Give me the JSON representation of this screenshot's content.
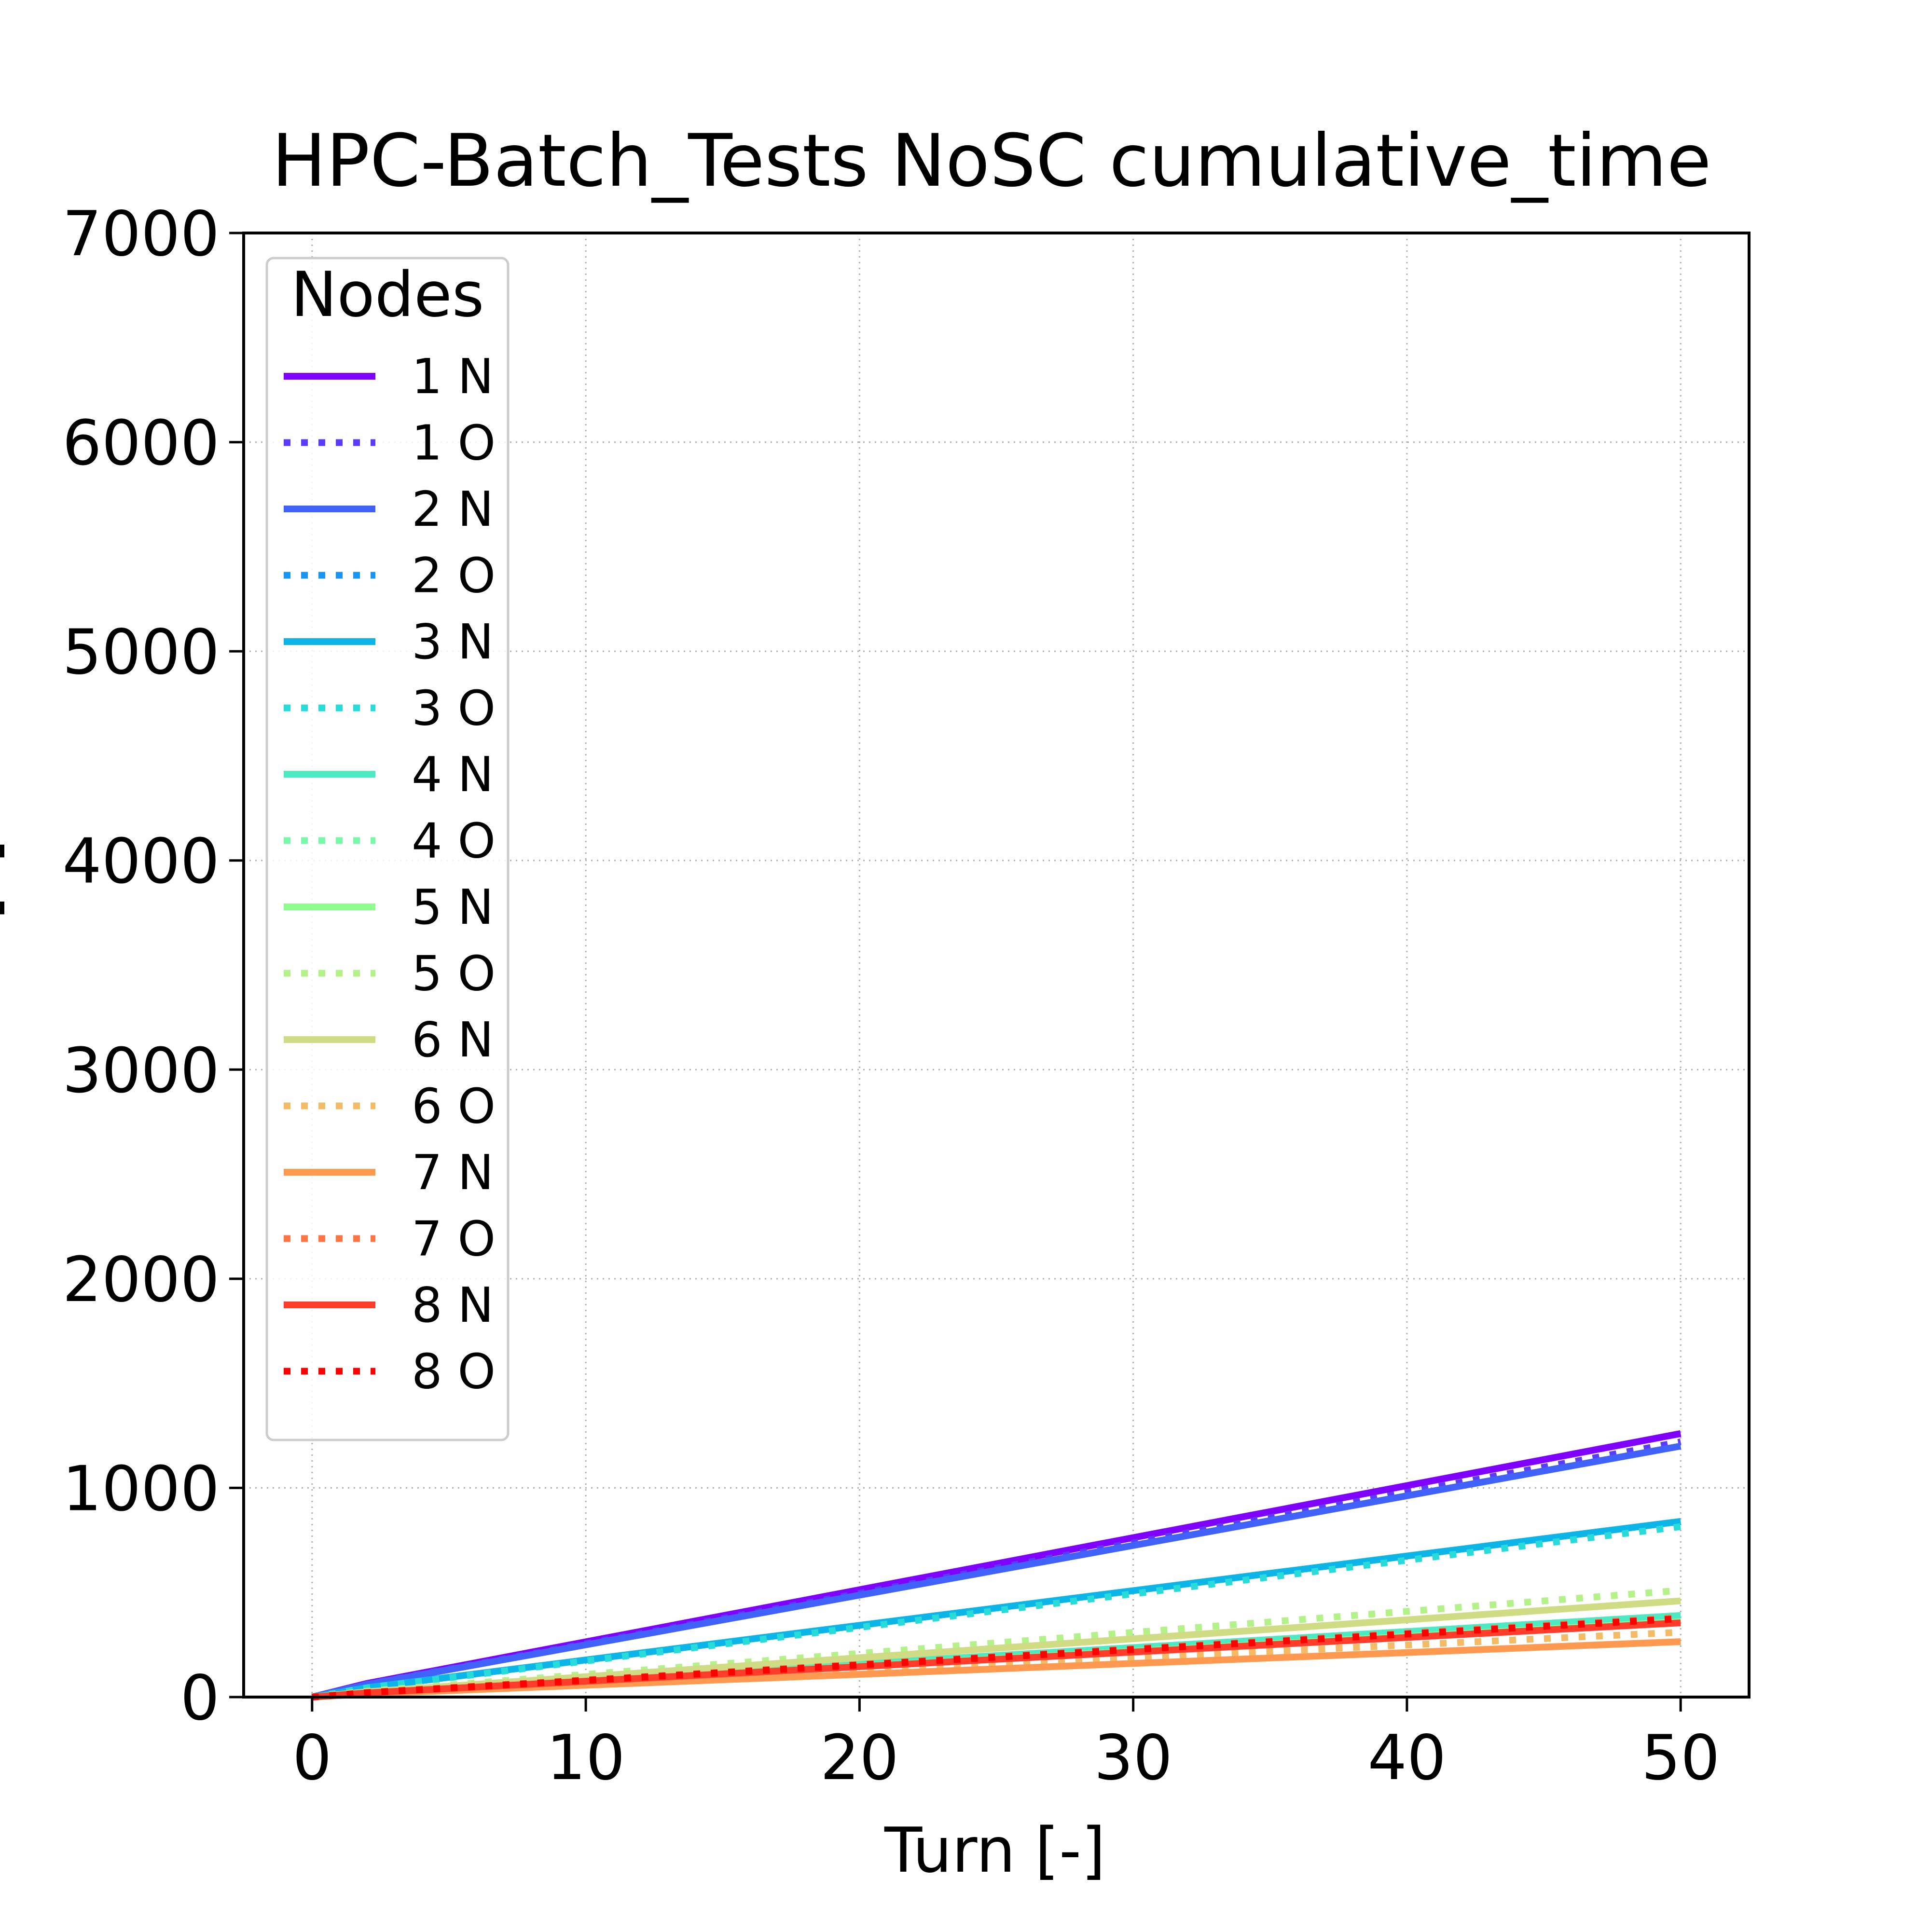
{
  "chart_data": {
    "type": "line",
    "title": "HPC-Batch_Tests NoSC cumulative_time",
    "xlabel": "Turn [-]",
    "ylabel": "Time [s]",
    "xlim": [
      -2.5,
      52.5
    ],
    "ylim": [
      0,
      7000
    ],
    "xticks": [
      0,
      10,
      20,
      30,
      40,
      50
    ],
    "yticks": [
      0,
      1000,
      2000,
      3000,
      4000,
      5000,
      6000,
      7000
    ],
    "grid": true,
    "legend": {
      "title": "Nodes",
      "placement": "upper-left"
    },
    "x": [
      0,
      2,
      50
    ],
    "series": [
      {
        "name": "1 N",
        "style": "solid",
        "color": "#8000ff",
        "values": [
          0,
          65,
          1260
        ]
      },
      {
        "name": "1 O",
        "style": "dotted",
        "color": "#5b3cfe",
        "values": [
          0,
          62,
          1220
        ]
      },
      {
        "name": "2 N",
        "style": "solid",
        "color": "#4062fa",
        "values": [
          0,
          60,
          1200
        ]
      },
      {
        "name": "2 O",
        "style": "dotted",
        "color": "#1996f3",
        "values": [
          0,
          45,
          830
        ]
      },
      {
        "name": "3 N",
        "style": "solid",
        "color": "#0bb5e7",
        "values": [
          0,
          45,
          840
        ]
      },
      {
        "name": "3 O",
        "style": "dotted",
        "color": "#26dbd8",
        "values": [
          0,
          44,
          815
        ]
      },
      {
        "name": "4 N",
        "style": "solid",
        "color": "#4ceac3",
        "values": [
          0,
          22,
          390
        ]
      },
      {
        "name": "4 O",
        "style": "dotted",
        "color": "#78f8a8",
        "values": [
          0,
          20,
          370
        ]
      },
      {
        "name": "5 N",
        "style": "solid",
        "color": "#8ffc8e",
        "values": [
          0,
          20,
          360
        ]
      },
      {
        "name": "5 O",
        "style": "dotted",
        "color": "#b2f289",
        "values": [
          0,
          28,
          510
        ]
      },
      {
        "name": "6 N",
        "style": "solid",
        "color": "#d0dc84",
        "values": [
          0,
          25,
          460
        ]
      },
      {
        "name": "6 O",
        "style": "dotted",
        "color": "#f4bb66",
        "values": [
          0,
          17,
          310
        ]
      },
      {
        "name": "7 N",
        "style": "solid",
        "color": "#ff9950",
        "values": [
          0,
          15,
          265
        ]
      },
      {
        "name": "7 O",
        "style": "dotted",
        "color": "#ff7544",
        "values": [
          0,
          22,
          380
        ]
      },
      {
        "name": "8 N",
        "style": "solid",
        "color": "#ff3d2a",
        "values": [
          0,
          20,
          355
        ]
      },
      {
        "name": "8 O",
        "style": "dotted",
        "color": "#ff0000",
        "values": [
          0,
          21,
          375
        ]
      }
    ]
  }
}
